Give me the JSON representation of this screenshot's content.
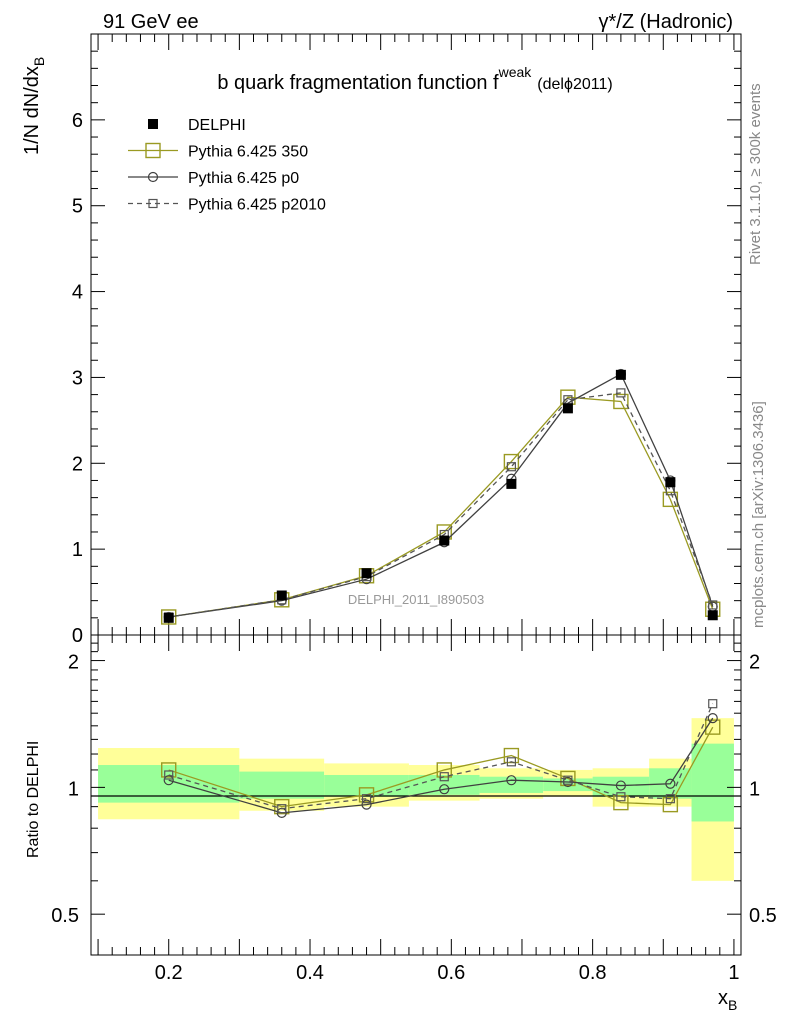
{
  "header": {
    "left": "91 GeV ee",
    "right": "γ*/Z (Hadronic)"
  },
  "side_labels": {
    "rivet": "Rivet 3.1.10, ≥ 300k events",
    "mcplots": "mcplots.cern.ch [arXiv:1306.3436]"
  },
  "watermark": "DELPHI_2011_I890503",
  "chart_data": [
    {
      "type": "line",
      "title": "b quark fragmentation function f",
      "title_sup": "weak",
      "title_suffix": "(delϕ2011)",
      "ylabel": "1/N dN/dx",
      "ylabel_sub": "B",
      "xlim": [
        0.09,
        1.01
      ],
      "ylim": [
        0,
        7
      ],
      "yticks": [
        0,
        1,
        2,
        3,
        4,
        5,
        6
      ],
      "ytick_labels": [
        "0",
        "1",
        "2",
        "3",
        "4",
        "5",
        "6"
      ],
      "x": [
        0.2,
        0.36,
        0.48,
        0.59,
        0.685,
        0.765,
        0.84,
        0.91,
        0.97
      ],
      "series": [
        {
          "name": "DELPHI",
          "style": "data",
          "color": "#000000",
          "values": [
            0.2,
            0.46,
            0.72,
            1.1,
            1.76,
            2.64,
            3.03,
            1.78,
            0.23
          ]
        },
        {
          "name": "Pythia 6.425 350",
          "style": "mc350",
          "color": "#9a9a22",
          "values": [
            0.21,
            0.41,
            0.69,
            1.2,
            2.02,
            2.77,
            2.72,
            1.58,
            0.3
          ]
        },
        {
          "name": "Pythia 6.425 p0",
          "style": "mcp0",
          "color": "#404040",
          "values": [
            0.21,
            0.4,
            0.65,
            1.08,
            1.82,
            2.7,
            3.04,
            1.8,
            0.33
          ]
        },
        {
          "name": "Pythia 6.425 p2010",
          "style": "mcp2010",
          "color": "#555555",
          "values": [
            0.21,
            0.41,
            0.68,
            1.17,
            1.96,
            2.74,
            2.82,
            1.68,
            0.35
          ]
        }
      ]
    },
    {
      "type": "line",
      "ylabel": "Ratio to DELPHI",
      "xlabel": "x",
      "xlabel_sub": "B",
      "xlim": [
        0.09,
        1.01
      ],
      "ylim": [
        0.4,
        2.3
      ],
      "xticks": [
        0.2,
        0.4,
        0.6,
        0.8,
        1.0
      ],
      "xtick_labels": [
        "0.2",
        "0.4",
        "0.6",
        "0.8",
        "1"
      ],
      "yticks": [
        0.5,
        1,
        2
      ],
      "ytick_labels": [
        "0.5",
        "1",
        "2"
      ],
      "x": [
        0.2,
        0.36,
        0.48,
        0.59,
        0.685,
        0.765,
        0.84,
        0.91,
        0.97
      ],
      "uncertainty_bands": {
        "bins": [
          [
            0.1,
            0.3
          ],
          [
            0.3,
            0.42
          ],
          [
            0.42,
            0.54
          ],
          [
            0.54,
            0.64
          ],
          [
            0.64,
            0.73
          ],
          [
            0.73,
            0.8
          ],
          [
            0.8,
            0.88
          ],
          [
            0.88,
            0.94
          ],
          [
            0.94,
            1.0
          ]
        ],
        "outer": [
          [
            0.84,
            1.24
          ],
          [
            0.88,
            1.17
          ],
          [
            0.9,
            1.14
          ],
          [
            0.93,
            1.13
          ],
          [
            0.94,
            1.11
          ],
          [
            0.95,
            1.1
          ],
          [
            0.9,
            1.11
          ],
          [
            0.9,
            1.17
          ],
          [
            0.6,
            1.46
          ]
        ],
        "inner": [
          [
            0.92,
            1.13
          ],
          [
            0.94,
            1.09
          ],
          [
            0.95,
            1.07
          ],
          [
            0.96,
            1.07
          ],
          [
            0.97,
            1.06
          ],
          [
            0.98,
            1.05
          ],
          [
            0.95,
            1.06
          ],
          [
            0.94,
            1.11
          ],
          [
            0.83,
            1.27
          ]
        ],
        "outer_color": "#ffff99",
        "inner_color": "#99ff99"
      },
      "series": [
        {
          "name": "Pythia 6.425 350",
          "style": "mc350",
          "color": "#9a9a22",
          "values": [
            1.1,
            0.9,
            0.96,
            1.1,
            1.19,
            1.05,
            0.92,
            0.91,
            1.39
          ]
        },
        {
          "name": "Pythia 6.425 p0",
          "style": "mcp0",
          "color": "#404040",
          "values": [
            1.04,
            0.87,
            0.91,
            0.99,
            1.04,
            1.03,
            1.01,
            1.02,
            1.46
          ]
        },
        {
          "name": "Pythia 6.425 p2010",
          "style": "mcp2010",
          "color": "#555555",
          "values": [
            1.07,
            0.89,
            0.94,
            1.06,
            1.15,
            1.04,
            0.95,
            0.94,
            1.58
          ]
        }
      ]
    }
  ]
}
